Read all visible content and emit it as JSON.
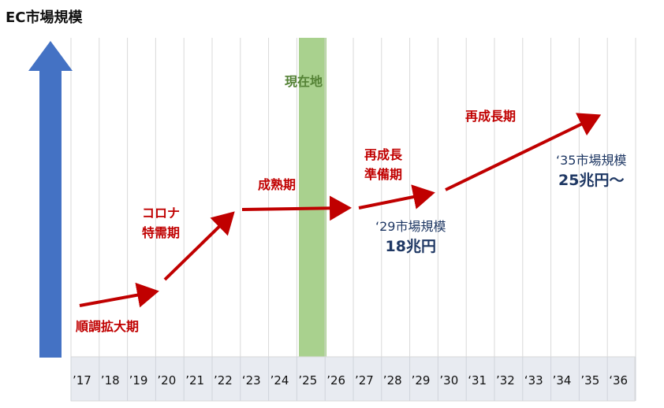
{
  "title": "EC市場規模",
  "current_marker": "現在地",
  "phases": {
    "p1": "順調拡大期",
    "p2a": "コロナ",
    "p2b": "特需期",
    "p3": "成熟期",
    "p4a": "再成長",
    "p4b": "準備期",
    "p5": "再成長期"
  },
  "market_2029": {
    "label": "‘29市場規模",
    "value": "18兆円"
  },
  "market_2035": {
    "label": "‘35市場規模",
    "value": "25兆円～"
  },
  "years": [
    "’17",
    "’18",
    "’19",
    "’20",
    "’21",
    "’22",
    "‘23",
    "’24",
    "’25",
    "’26",
    "’27",
    "’28",
    "’29",
    "’30",
    "‘31",
    "’32",
    "‘33",
    "’34",
    "’35",
    "‘36"
  ],
  "colors": {
    "arrow_up": "#4472c4",
    "trend": "#c00000",
    "current_band": "#a9d18e",
    "grid": "#d9d9d9",
    "axis_band": "#e8ebf1"
  }
}
